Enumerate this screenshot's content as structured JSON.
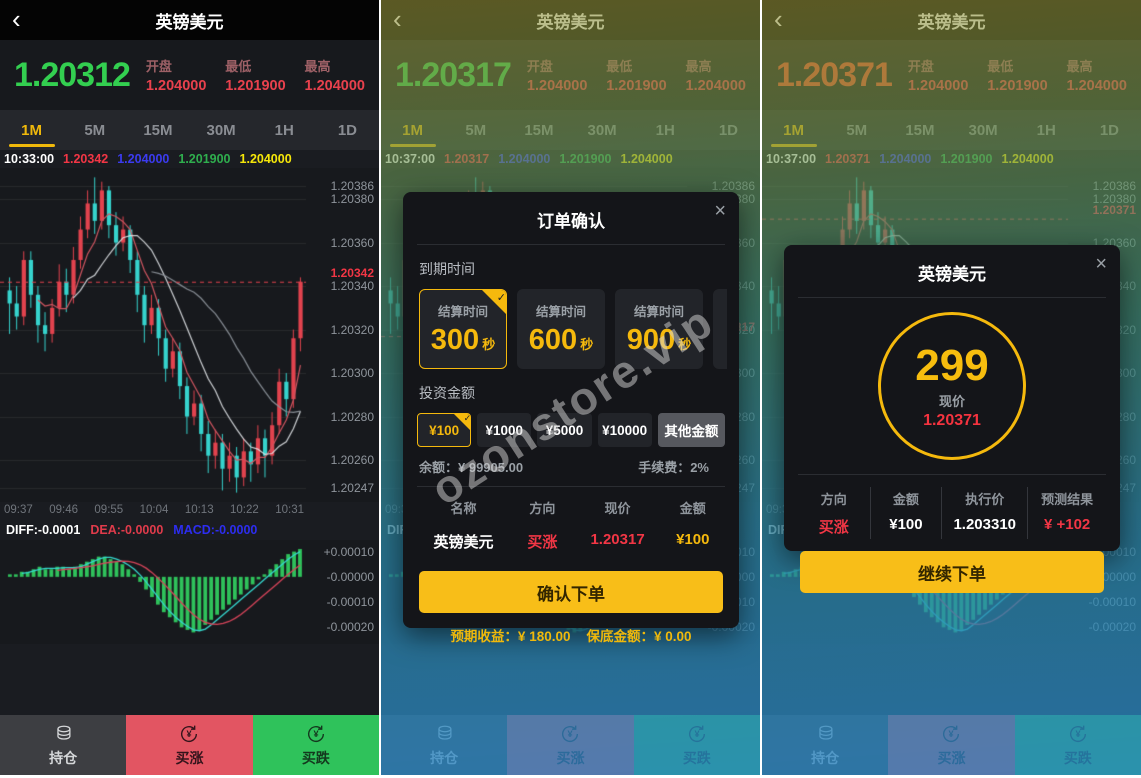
{
  "app": {
    "title": "英镑美元",
    "back_icon": "‹"
  },
  "stats": {
    "open_label": "开盘",
    "low_label": "最低",
    "high_label": "最高",
    "open": "1.204000",
    "low": "1.201900",
    "high": "1.204000"
  },
  "tabs": [
    "1M",
    "5M",
    "15M",
    "30M",
    "1H",
    "1D"
  ],
  "panels": [
    {
      "price": "1.20312",
      "price_color": "#33cf50",
      "time": "10:33:00",
      "last": "1.20342"
    },
    {
      "price": "1.20317",
      "price_color": "#33cf50",
      "time": "10:37:00",
      "last": "1.20317"
    },
    {
      "price": "1.20371",
      "price_color": "#f0542e",
      "time": "10:37:00",
      "last": "1.20371"
    }
  ],
  "chart": {
    "type": "candlestick",
    "info_open_blue": "1.204000",
    "info_low_green": "1.201900",
    "info_high_yellow": "1.204000",
    "right_axis": [
      "1.20386",
      "1.20380",
      "1.20360",
      "1.20340",
      "1.20320",
      "1.20300",
      "1.20280",
      "1.20260",
      "1.20247"
    ],
    "x_axis": [
      "09:37",
      "09:46",
      "09:55",
      "10:04",
      "10:13",
      "10:22",
      "10:31"
    ],
    "diff_text": "DIFF:-0.0001",
    "dea_text": "DEA:-0.0000",
    "macd_text": "MACD:-0.0000",
    "macd_axis": [
      "+0.00010",
      "-0.00000",
      "-0.00010",
      "-0.00020"
    ],
    "candles_ohlc_1e5": [
      [
        338,
        332,
        318,
        344
      ],
      [
        332,
        326,
        320,
        340
      ],
      [
        326,
        352,
        322,
        356
      ],
      [
        352,
        336,
        330,
        356
      ],
      [
        336,
        322,
        314,
        340
      ],
      [
        322,
        318,
        310,
        328
      ],
      [
        318,
        330,
        314,
        334
      ],
      [
        330,
        342,
        326,
        350
      ],
      [
        342,
        336,
        328,
        348
      ],
      [
        336,
        352,
        332,
        358
      ],
      [
        352,
        366,
        348,
        372
      ],
      [
        366,
        378,
        362,
        384
      ],
      [
        378,
        370,
        364,
        390
      ],
      [
        370,
        384,
        366,
        388
      ],
      [
        384,
        368,
        362,
        386
      ],
      [
        368,
        360,
        354,
        374
      ],
      [
        360,
        366,
        356,
        372
      ],
      [
        366,
        352,
        346,
        368
      ],
      [
        352,
        336,
        328,
        356
      ],
      [
        336,
        322,
        314,
        340
      ],
      [
        322,
        330,
        318,
        336
      ],
      [
        330,
        316,
        308,
        334
      ],
      [
        316,
        302,
        296,
        320
      ],
      [
        302,
        310,
        298,
        316
      ],
      [
        310,
        294,
        288,
        314
      ],
      [
        294,
        280,
        272,
        298
      ],
      [
        280,
        286,
        276,
        292
      ],
      [
        286,
        272,
        264,
        290
      ],
      [
        272,
        262,
        254,
        278
      ],
      [
        262,
        268,
        256,
        274
      ],
      [
        268,
        256,
        246,
        272
      ],
      [
        256,
        262,
        250,
        268
      ],
      [
        262,
        252,
        245,
        266
      ],
      [
        252,
        264,
        248,
        270
      ],
      [
        264,
        258,
        250,
        268
      ],
      [
        258,
        270,
        254,
        276
      ],
      [
        270,
        262,
        252,
        274
      ],
      [
        262,
        276,
        258,
        282
      ],
      [
        276,
        296,
        272,
        302
      ],
      [
        296,
        288,
        280,
        300
      ],
      [
        288,
        316,
        284,
        320
      ],
      [
        316,
        342,
        310,
        344
      ]
    ],
    "macd_bars_1e5": [
      1,
      1,
      2,
      2,
      3,
      4,
      3,
      3,
      4,
      4,
      3,
      4,
      5,
      6,
      7,
      8,
      8,
      7,
      6,
      5,
      3,
      1,
      -2,
      -5,
      -8,
      -11,
      -14,
      -16,
      -18,
      -20,
      -21,
      -22,
      -21,
      -19,
      -17,
      -15,
      -13,
      -11,
      -9,
      -7,
      -5,
      -3,
      -1,
      1,
      3,
      5,
      7,
      9,
      10,
      11
    ]
  },
  "nav": [
    {
      "label": "持仓"
    },
    {
      "label": "买涨"
    },
    {
      "label": "买跌"
    }
  ],
  "order_modal": {
    "title": "订单确认",
    "close_icon": "×",
    "expiry_label": "到期时间",
    "expiry_options": [
      {
        "label": "结算时间",
        "value": "300",
        "unit": "秒",
        "selected": true
      },
      {
        "label": "结算时间",
        "value": "600",
        "unit": "秒",
        "selected": false
      },
      {
        "label": "结算时间",
        "value": "900",
        "unit": "秒",
        "selected": false
      }
    ],
    "amount_label": "投资金额",
    "amounts": [
      {
        "label": "¥100",
        "selected": true
      },
      {
        "label": "¥1000",
        "selected": false
      },
      {
        "label": "¥5000",
        "selected": false
      },
      {
        "label": "¥10000",
        "selected": false
      },
      {
        "label": "其他金额",
        "selected": false
      }
    ],
    "balance": "余额：¥ 99905.00",
    "fee": "手续费：2%",
    "table_headers": [
      "名称",
      "方向",
      "现价",
      "金额"
    ],
    "row": {
      "name": "英镑美元",
      "direction": "买涨",
      "price": "1.20317",
      "amount": "¥100"
    },
    "confirm_label": "确认下单",
    "expected_profit": "预期收益：¥ 180.00",
    "guarantee": "保底金额：¥ 0.00"
  },
  "result_modal": {
    "title": "英镑美元",
    "close_icon": "×",
    "countdown": "299",
    "price_label": "现价",
    "price": "1.20371",
    "columns": [
      {
        "label": "方向",
        "value": "买涨",
        "color": "#f23645"
      },
      {
        "label": "金额",
        "value": "¥100",
        "color": "#ffffff"
      },
      {
        "label": "执行价",
        "value": "1.203310",
        "color": "#ffffff"
      },
      {
        "label": "预测结果",
        "value": "¥ +102",
        "color": "#f23645"
      }
    ],
    "continue_label": "继续下单"
  },
  "watermark": "ozonstore.vip",
  "colors": {
    "accent_yellow": "#f5b90d",
    "up_red": "#f23645",
    "down_green": "#2fc25b",
    "candle_cyan": "#36d3cd",
    "info_blue": "#3b3bf0"
  }
}
